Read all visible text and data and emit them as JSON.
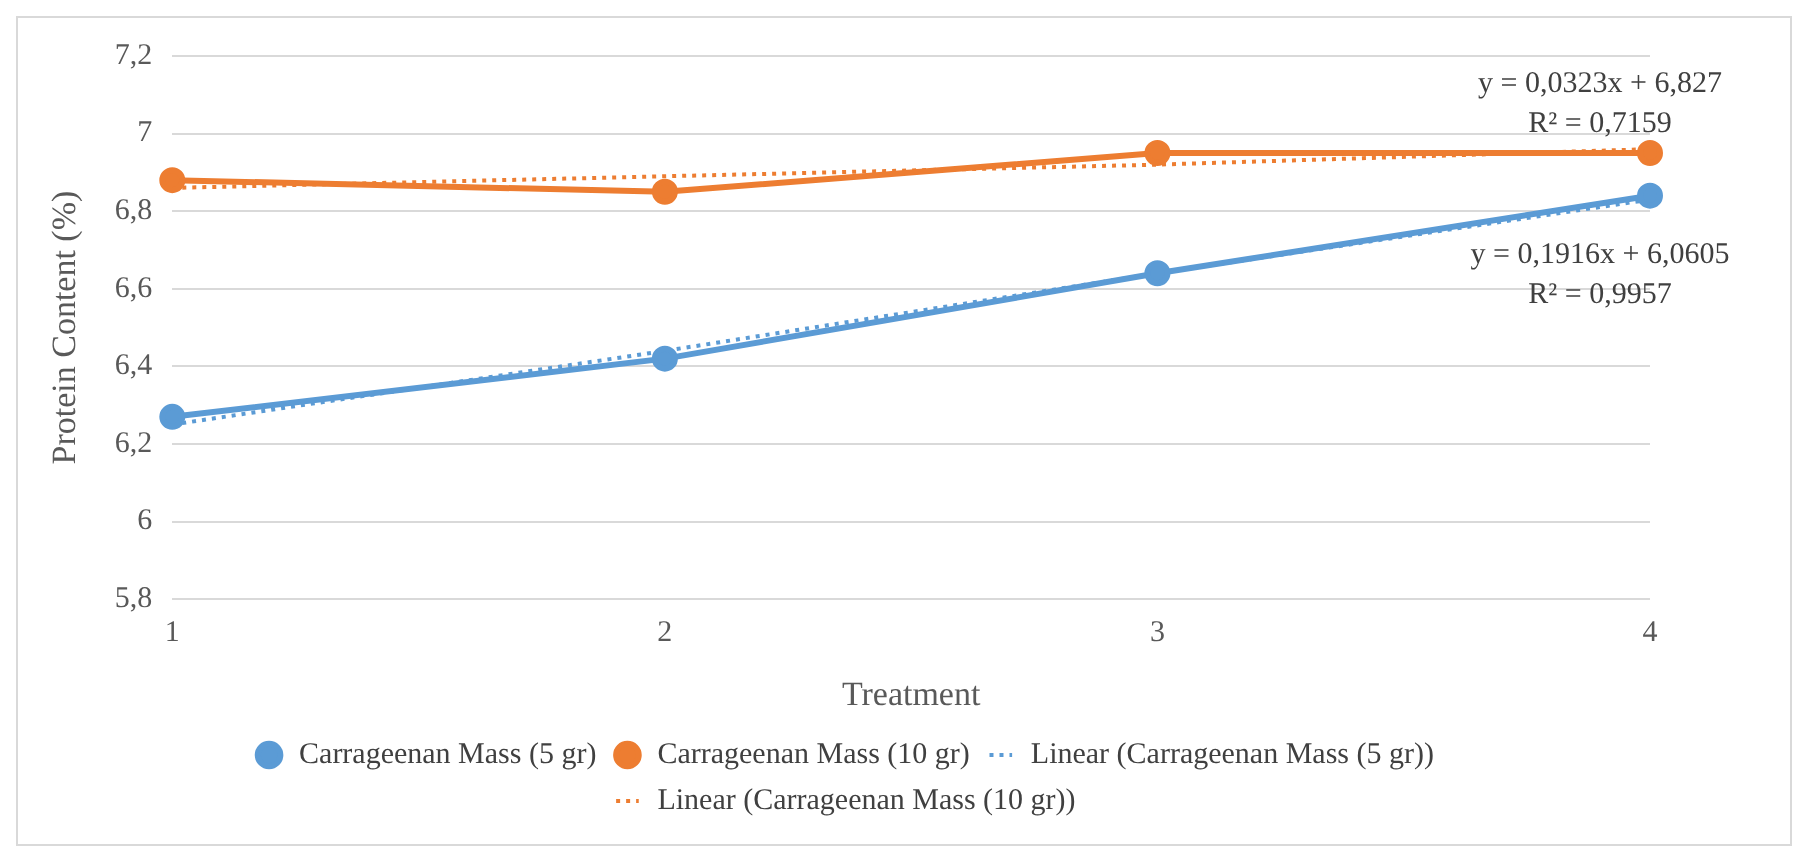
{
  "chart_data": {
    "type": "line",
    "xlabel": "Treatment",
    "ylabel": "Protein Content (%)",
    "categories": [
      "1",
      "2",
      "3",
      "4"
    ],
    "ylim": [
      5.8,
      7.2
    ],
    "yticks": [
      {
        "value": 5.8,
        "label": "5,8"
      },
      6,
      {
        "value": 6.2,
        "label": "6,2"
      },
      {
        "value": 6.4,
        "label": "6,4"
      },
      {
        "value": 6.6,
        "label": "6,6"
      },
      {
        "value": 6.8,
        "label": "6,8"
      },
      7,
      {
        "value": 7.2,
        "label": "7,2"
      }
    ],
    "grid": "y",
    "legend": "bottom",
    "marker": "circle",
    "line_style": "solid",
    "series": [
      {
        "name": "Carrageenan Mass (5 gr)",
        "color": "#5b9bd5",
        "values": [
          6.27,
          6.42,
          6.64,
          6.84
        ]
      },
      {
        "name": "Carrageenan Mass (10 gr)",
        "color": "#ed7d31",
        "values": [
          6.88,
          6.85,
          6.95,
          6.95
        ]
      },
      {
        "name": "Linear (Carrageenan Mass (5 gr))",
        "color": "#5b9bd5",
        "values": [
          6.25,
          6.44,
          6.64,
          6.83
        ],
        "marker": "none",
        "line_style": "dotted"
      },
      {
        "name": "Linear (Carrageenan Mass (10 gr))",
        "color": "#ed7d31",
        "values": [
          6.86,
          6.89,
          6.92,
          6.96
        ],
        "marker": "none",
        "line_style": "dotted"
      }
    ],
    "annotations": [
      "y = 0,0323x + 6,827",
      "R² = 0,7159",
      "y = 0,1916x + 6,0605",
      "R² = 0,9957"
    ]
  }
}
